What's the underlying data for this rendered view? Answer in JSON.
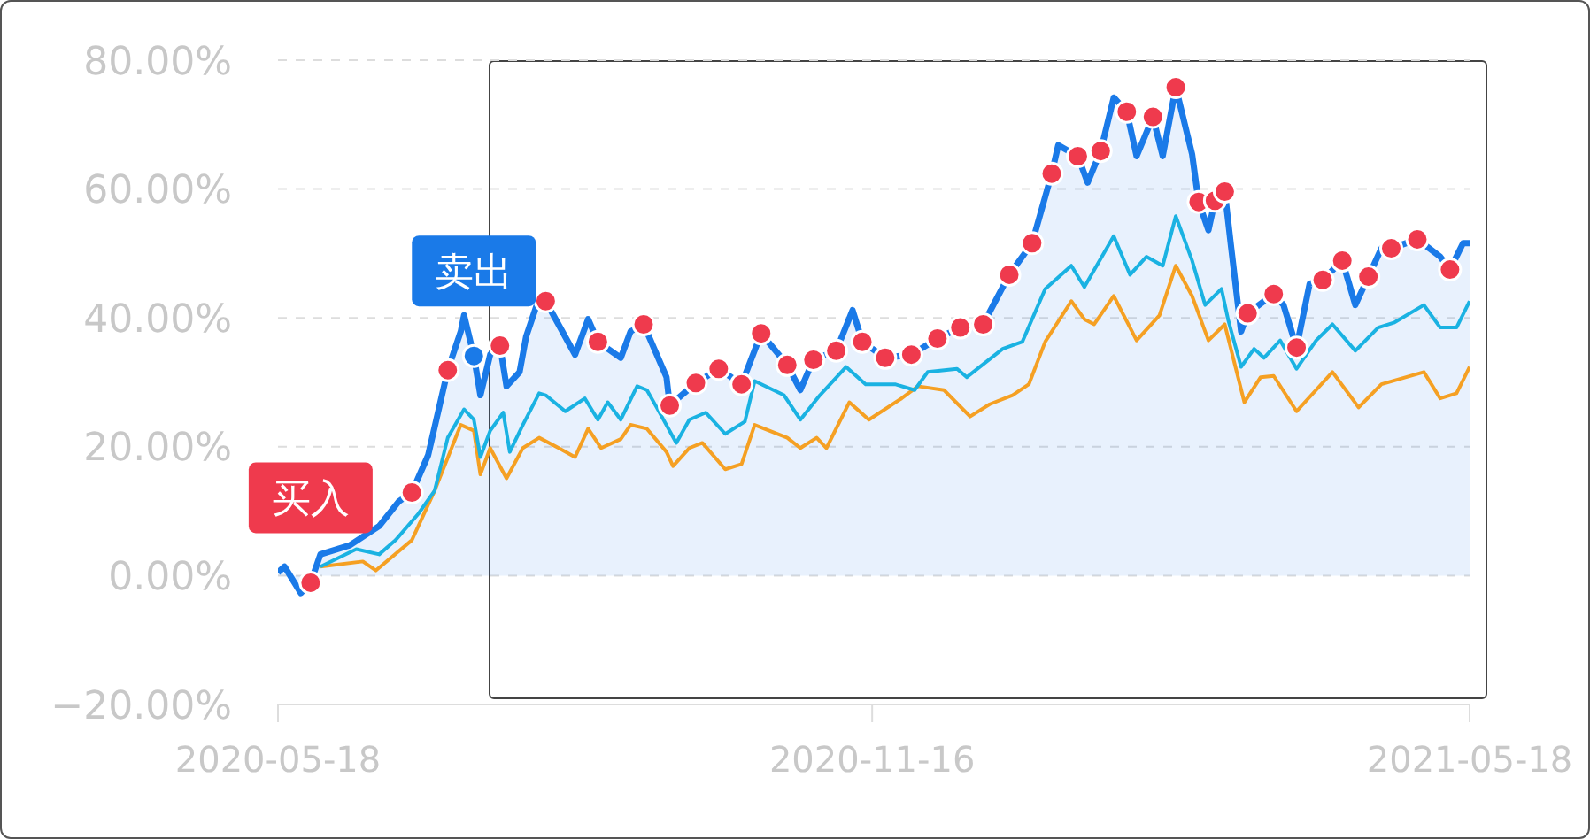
{
  "chart_data": {
    "type": "line",
    "xlim": [
      "2020-05-18",
      "2021-05-18"
    ],
    "xticks": [
      "2020-05-18",
      "2020-11-16",
      "2021-05-18"
    ],
    "ylim": [
      -20,
      80
    ],
    "yticks": [
      {
        "value": -20,
        "label": "−20.00%"
      },
      {
        "value": 0,
        "label": "0.00%"
      },
      {
        "value": 20,
        "label": "20.00%"
      },
      {
        "value": 40,
        "label": "40.00%"
      },
      {
        "value": 60,
        "label": "60.00%"
      },
      {
        "value": 80,
        "label": "80.00%"
      }
    ],
    "grid": "y",
    "annotations": [
      {
        "text": "买入",
        "x": "2020-05-28",
        "y": -1.1
      },
      {
        "text": "卖出",
        "x": "2020-07-17",
        "y": 34.1
      }
    ],
    "series": [
      {
        "color": "#f5a023",
        "x": [
          "2020-05-31",
          "2020-06-13",
          "2020-06-17",
          "2020-06-28",
          "2020-07-05",
          "2020-07-13",
          "2020-07-17",
          "2020-07-19",
          "2020-07-22",
          "2020-07-27",
          "2020-08-01",
          "2020-08-06",
          "2020-08-12",
          "2020-08-17",
          "2020-08-21",
          "2020-08-25",
          "2020-08-31",
          "2020-09-03",
          "2020-09-08",
          "2020-09-14",
          "2020-09-16",
          "2020-09-21",
          "2020-09-25",
          "2020-10-02",
          "2020-10-07",
          "2020-10-11",
          "2020-10-21",
          "2020-10-25",
          "2020-10-30",
          "2020-11-02",
          "2020-11-09",
          "2020-11-15",
          "2020-11-25",
          "2020-11-30",
          "2020-12-08",
          "2020-12-16",
          "2020-12-22",
          "2020-12-29",
          "2021-01-03",
          "2021-01-08",
          "2021-01-16",
          "2021-01-20",
          "2021-01-23",
          "2021-01-29",
          "2021-02-05",
          "2021-02-12",
          "2021-02-17",
          "2021-02-22",
          "2021-02-27",
          "2021-03-04",
          "2021-03-10",
          "2021-03-15",
          "2021-03-19",
          "2021-03-26",
          "2021-04-06",
          "2021-04-14",
          "2021-04-21",
          "2021-05-04",
          "2021-05-09",
          "2021-05-14",
          "2021-05-18"
        ],
        "values": [
          1.4,
          2.2,
          0.8,
          5.5,
          13.2,
          23.4,
          22.5,
          15.7,
          19.8,
          15.1,
          19.8,
          21.4,
          19.8,
          18.4,
          22.8,
          19.8,
          21.2,
          23.4,
          22.8,
          19.2,
          17.0,
          19.8,
          20.6,
          16.5,
          17.3,
          23.4,
          21.4,
          19.8,
          21.4,
          19.8,
          26.9,
          24.2,
          27.5,
          29.4,
          28.8,
          24.7,
          26.6,
          28.0,
          29.7,
          36.3,
          42.6,
          39.8,
          39.0,
          43.4,
          36.5,
          40.4,
          48.1,
          43.4,
          36.5,
          39.0,
          26.9,
          30.8,
          31.0,
          25.5,
          31.6,
          26.1,
          29.7,
          31.6,
          27.5,
          28.3,
          32.4
        ]
      },
      {
        "color": "#1ab2e2",
        "x": [
          "2020-05-31",
          "2020-06-11",
          "2020-06-18",
          "2020-06-23",
          "2020-06-30",
          "2020-07-05",
          "2020-07-09",
          "2020-07-14",
          "2020-07-17",
          "2020-07-19",
          "2020-07-22",
          "2020-07-26",
          "2020-07-28",
          "2020-08-01",
          "2020-08-06",
          "2020-08-08",
          "2020-08-14",
          "2020-08-20",
          "2020-08-24",
          "2020-08-27",
          "2020-08-31",
          "2020-09-05",
          "2020-09-08",
          "2020-09-11",
          "2020-09-17",
          "2020-09-21",
          "2020-09-26",
          "2020-10-02",
          "2020-10-08",
          "2020-10-11",
          "2020-10-20",
          "2020-10-25",
          "2020-10-31",
          "2020-11-08",
          "2020-11-14",
          "2020-11-23",
          "2020-11-29",
          "2020-12-03",
          "2020-12-12",
          "2020-12-15",
          "2020-12-26",
          "2021-01-01",
          "2021-01-08",
          "2021-01-16",
          "2021-01-20",
          "2021-01-29",
          "2021-02-03",
          "2021-02-08",
          "2021-02-13",
          "2021-02-17",
          "2021-02-22",
          "2021-02-26",
          "2021-03-03",
          "2021-03-05",
          "2021-03-09",
          "2021-03-13",
          "2021-03-16",
          "2021-03-21",
          "2021-03-26",
          "2021-04-01",
          "2021-04-06",
          "2021-04-13",
          "2021-04-20",
          "2021-04-25",
          "2021-05-04",
          "2021-05-09",
          "2021-05-14",
          "2021-05-18"
        ],
        "values": [
          1.4,
          4.1,
          3.3,
          5.5,
          9.6,
          13.2,
          21.4,
          25.8,
          24.2,
          18.4,
          22.5,
          25.3,
          19.2,
          23.4,
          28.3,
          28.0,
          25.5,
          27.5,
          24.2,
          26.9,
          24.2,
          29.4,
          28.8,
          26.1,
          20.6,
          24.2,
          25.3,
          22.0,
          23.9,
          30.2,
          28.0,
          24.2,
          28.0,
          32.4,
          29.7,
          29.7,
          28.8,
          31.6,
          32.1,
          30.8,
          35.2,
          36.3,
          44.5,
          48.1,
          44.8,
          52.7,
          46.7,
          49.5,
          48.1,
          55.8,
          48.9,
          42.0,
          44.5,
          39.8,
          32.4,
          35.2,
          33.8,
          36.5,
          32.1,
          36.5,
          39.0,
          34.9,
          38.5,
          39.3,
          42.0,
          38.5,
          38.5,
          42.6
        ]
      },
      {
        "type": "area",
        "color": "#1a7ae8",
        "x": [
          "2020-05-18",
          "2020-05-20",
          "2020-05-25",
          "2020-05-28",
          "2020-05-31",
          "2020-06-09",
          "2020-06-18",
          "2020-06-24",
          "2020-06-28",
          "2020-07-03",
          "2020-07-09",
          "2020-07-13",
          "2020-07-14",
          "2020-07-17",
          "2020-07-19",
          "2020-07-22",
          "2020-07-25",
          "2020-07-27",
          "2020-07-31",
          "2020-08-02",
          "2020-08-06",
          "2020-08-08",
          "2020-08-17",
          "2020-08-21",
          "2020-08-24",
          "2020-08-31",
          "2020-09-03",
          "2020-09-07",
          "2020-09-14",
          "2020-09-15",
          "2020-09-23",
          "2020-09-30",
          "2020-10-07",
          "2020-10-13",
          "2020-10-21",
          "2020-10-25",
          "2020-10-29",
          "2020-11-05",
          "2020-11-10",
          "2020-11-13",
          "2020-11-20",
          "2020-11-28",
          "2020-12-06",
          "2020-12-13",
          "2020-12-20",
          "2020-12-28",
          "2021-01-04",
          "2021-01-10",
          "2021-01-12",
          "2021-01-18",
          "2021-01-21",
          "2021-01-25",
          "2021-01-29",
          "2021-02-02",
          "2021-02-05",
          "2021-02-10",
          "2021-02-13",
          "2021-02-17",
          "2021-02-22",
          "2021-02-24",
          "2021-02-27",
          "2021-03-01",
          "2021-03-04",
          "2021-03-06",
          "2021-03-09",
          "2021-03-11",
          "2021-03-19",
          "2021-03-22",
          "2021-03-26",
          "2021-03-30",
          "2021-04-03",
          "2021-04-09",
          "2021-04-13",
          "2021-04-17",
          "2021-04-21",
          "2021-04-24",
          "2021-05-02",
          "2021-05-09",
          "2021-05-12",
          "2021-05-16",
          "2021-05-18"
        ],
        "values": [
          0.5,
          1.4,
          -2.7,
          -1.1,
          3.3,
          4.7,
          7.7,
          11.5,
          12.9,
          18.7,
          31.9,
          37.9,
          40.4,
          34.1,
          28.0,
          34.3,
          35.7,
          29.4,
          31.6,
          37.1,
          43.1,
          42.6,
          34.3,
          39.8,
          36.3,
          33.8,
          37.9,
          39.0,
          30.8,
          26.4,
          29.9,
          32.1,
          29.7,
          37.6,
          32.7,
          28.8,
          33.5,
          34.9,
          41.2,
          36.3,
          33.8,
          34.3,
          36.8,
          38.5,
          39.0,
          46.7,
          51.6,
          62.4,
          66.8,
          65.1,
          61.0,
          65.9,
          74.2,
          72.0,
          65.1,
          71.2,
          65.1,
          75.8,
          65.4,
          58.0,
          53.6,
          58.2,
          59.6,
          50.8,
          37.9,
          40.7,
          43.7,
          42.0,
          35.4,
          45.3,
          45.9,
          48.9,
          42.0,
          46.4,
          50.8,
          50.8,
          52.2,
          49.5,
          47.5,
          51.6,
          51.6
        ]
      },
      {
        "type": "scatter",
        "marker": "circle",
        "color": "#ef3a4d",
        "x": [
          "2020-05-28",
          "2020-06-28",
          "2020-07-09",
          "2020-07-25",
          "2020-08-08",
          "2020-08-24",
          "2020-09-07",
          "2020-09-15",
          "2020-09-23",
          "2020-09-30",
          "2020-10-07",
          "2020-10-13",
          "2020-10-21",
          "2020-10-29",
          "2020-11-05",
          "2020-11-13",
          "2020-11-20",
          "2020-11-28",
          "2020-12-06",
          "2020-12-13",
          "2020-12-20",
          "2020-12-28",
          "2021-01-04",
          "2021-01-10",
          "2021-01-18",
          "2021-01-25",
          "2021-02-02",
          "2021-02-10",
          "2021-02-17",
          "2021-02-24",
          "2021-03-01",
          "2021-03-04",
          "2021-03-11",
          "2021-03-19",
          "2021-03-26",
          "2021-04-03",
          "2021-04-09",
          "2021-04-17",
          "2021-04-24",
          "2021-05-02",
          "2021-05-12"
        ],
        "values": [
          -1.1,
          12.9,
          31.9,
          35.7,
          42.6,
          36.3,
          39.0,
          26.4,
          29.9,
          32.1,
          29.7,
          37.6,
          32.7,
          33.5,
          34.9,
          36.3,
          33.8,
          34.3,
          36.8,
          38.5,
          39.0,
          46.7,
          51.6,
          62.4,
          65.1,
          65.9,
          72.0,
          71.2,
          75.8,
          58.0,
          58.2,
          59.6,
          40.7,
          43.7,
          35.4,
          45.9,
          48.9,
          46.4,
          50.8,
          52.2,
          47.5
        ]
      },
      {
        "type": "scatter",
        "marker": "circle",
        "color": "#1a7ae8",
        "x": [
          "2020-07-17"
        ],
        "values": [
          34.1
        ]
      }
    ]
  }
}
